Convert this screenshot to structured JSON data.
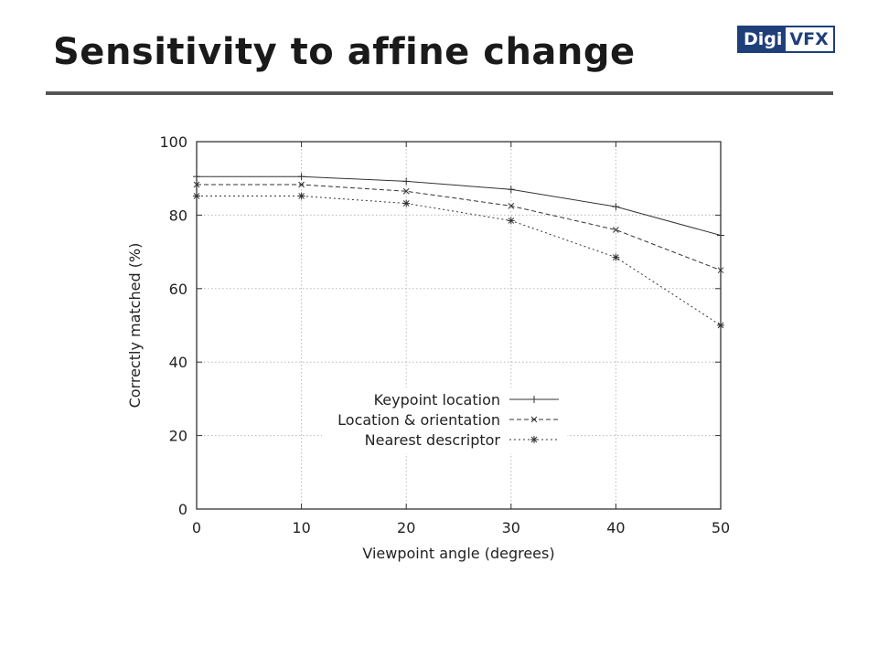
{
  "slide": {
    "title": "Sensitivity to affine change"
  },
  "logo": {
    "part_a": "Digi",
    "part_b": "VFX",
    "color": "#1f3f7a"
  },
  "chart_data": {
    "type": "line",
    "title": "",
    "xlabel": "Viewpoint angle (degrees)",
    "ylabel": "Correctly matched (%)",
    "xlim": [
      0,
      50
    ],
    "ylim": [
      0,
      100
    ],
    "xticks": [
      0,
      10,
      20,
      30,
      40,
      50
    ],
    "yticks": [
      0,
      20,
      40,
      60,
      80,
      100
    ],
    "grid": true,
    "legend_position": "center-bottom",
    "x": [
      0,
      10,
      20,
      30,
      40,
      50
    ],
    "series": [
      {
        "name": "Keypoint location",
        "values": [
          90.5,
          90.5,
          89.2,
          87,
          82.3,
          74.5
        ],
        "marker": "plus",
        "dash": "solid"
      },
      {
        "name": "Location & orientation",
        "values": [
          88.3,
          88.3,
          86.5,
          82.5,
          76,
          65
        ],
        "marker": "cross",
        "dash": "dashed"
      },
      {
        "name": "Nearest descriptor",
        "values": [
          85.2,
          85.2,
          83.2,
          78.5,
          68.5,
          50
        ],
        "marker": "star",
        "dash": "dotted"
      }
    ]
  }
}
